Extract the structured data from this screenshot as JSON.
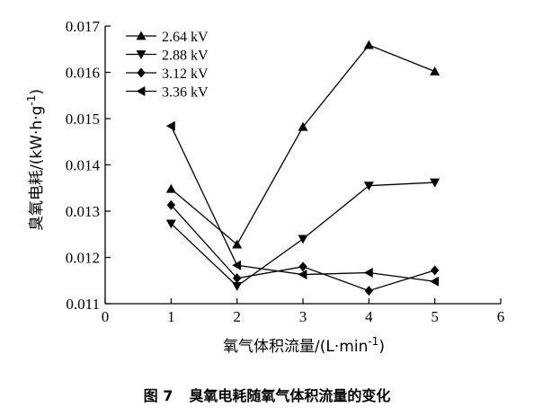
{
  "chart_data": {
    "type": "line",
    "x": [
      1,
      2,
      3,
      4,
      5
    ],
    "series": [
      {
        "name": "2.64 kV",
        "marker": "triangle-up",
        "values": [
          0.01348,
          0.01228,
          0.01482,
          0.01659,
          0.01602
        ]
      },
      {
        "name": "2.88 kV",
        "marker": "triangle-down",
        "values": [
          0.01273,
          0.01138,
          0.0124,
          0.01355,
          0.01362
        ]
      },
      {
        "name": "3.12 kV",
        "marker": "diamond",
        "values": [
          0.01313,
          0.01155,
          0.0118,
          0.01128,
          0.01172
        ]
      },
      {
        "name": "3.36 kV",
        "marker": "triangle-left",
        "values": [
          0.01484,
          0.01183,
          0.01163,
          0.01167,
          0.01148
        ]
      }
    ],
    "xlabel": "氧气体积流量/(L·min⁻¹)",
    "ylabel": "臭氧电耗/(kW·h·g⁻¹)",
    "xlim": [
      0,
      6
    ],
    "ylim": [
      0.011,
      0.017
    ],
    "xticks": [
      "0",
      "1",
      "2",
      "3",
      "4",
      "5",
      "6"
    ],
    "yticks": [
      "0.011",
      "0.012",
      "0.013",
      "0.014",
      "0.015",
      "0.016",
      "0.017"
    ],
    "legend_position": "top-left",
    "grid": false
  },
  "caption": {
    "number": "图 7",
    "text": "臭氧电耗随氧气体积流量的变化"
  },
  "colors": {
    "line": "#000000",
    "background": "#ffffff"
  }
}
